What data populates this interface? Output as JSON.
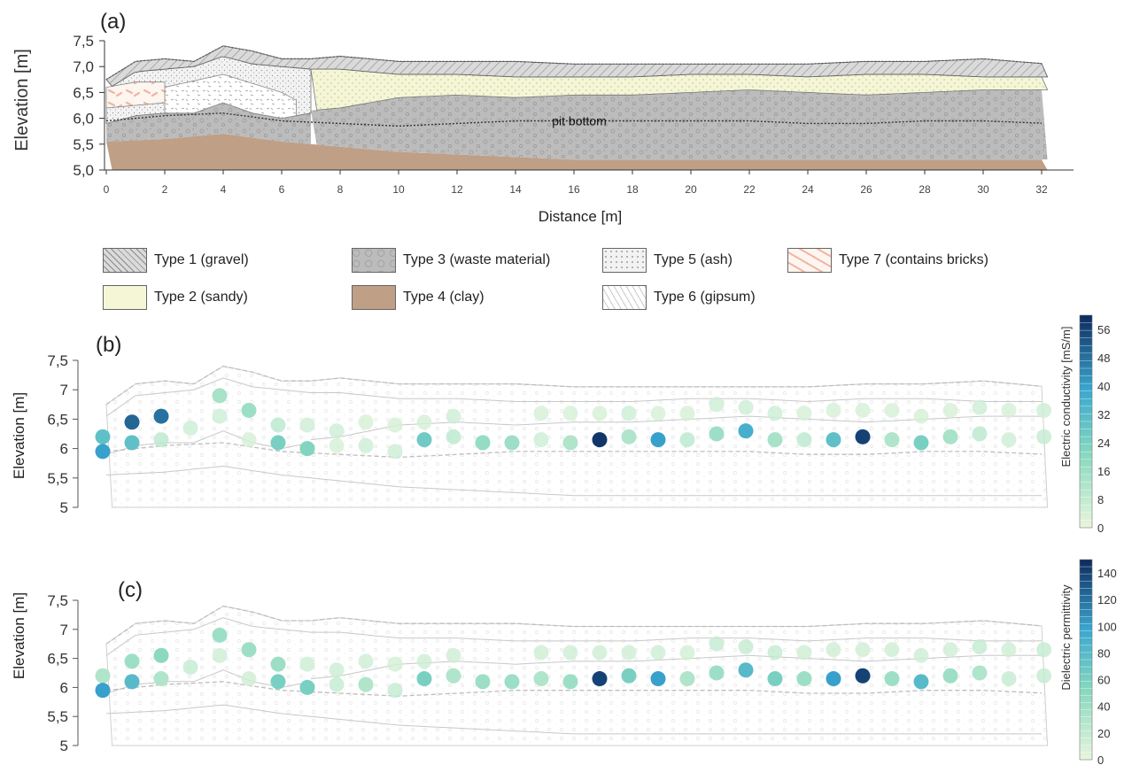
{
  "chart_data": [
    {
      "type": "area",
      "panel_label": "(a)",
      "xlabel": "Distance [m]",
      "ylabel": "Elevation [m]",
      "xlim": [
        0,
        32.5
      ],
      "ylim": [
        5.0,
        7.5
      ],
      "xticks": [
        "0",
        "2",
        "4",
        "6",
        "8",
        "10",
        "12",
        "14",
        "16",
        "18",
        "20",
        "22",
        "24",
        "26",
        "28",
        "30",
        "32"
      ],
      "yticks": [
        "5,0",
        "5,5",
        "6,0",
        "6,5",
        "7,0",
        "7,5"
      ],
      "annotation": "pit bottom",
      "annotation_x": 16,
      "annotation_y": 5.95,
      "top_surface": {
        "x": [
          0,
          1,
          2,
          3,
          4,
          5,
          6,
          7,
          8,
          9,
          10,
          12,
          14,
          16,
          18,
          20,
          22,
          24,
          26,
          28,
          30,
          32.2
        ],
        "y": [
          6.75,
          7.1,
          7.15,
          7.1,
          7.4,
          7.3,
          7.15,
          7.15,
          7.2,
          7.15,
          7.1,
          7.1,
          7.1,
          7.05,
          7.05,
          7.05,
          7.05,
          7.05,
          7.1,
          7.1,
          7.15,
          7.05
        ]
      },
      "gravel_base": {
        "x": [
          0,
          1,
          2,
          3,
          4,
          5,
          6,
          7,
          8,
          9,
          10,
          12,
          14,
          16,
          18,
          20,
          22,
          24,
          26,
          28,
          30,
          32.2
        ],
        "y": [
          6.55,
          6.9,
          6.95,
          7.0,
          7.2,
          7.05,
          7.0,
          6.95,
          6.95,
          6.9,
          6.85,
          6.85,
          6.8,
          6.8,
          6.8,
          6.85,
          6.85,
          6.8,
          6.85,
          6.85,
          6.8,
          6.8
        ]
      },
      "sandy_base": {
        "x": [
          7,
          8,
          9,
          10,
          12,
          14,
          16,
          18,
          20,
          22,
          24,
          26,
          28,
          30,
          32.2
        ],
        "y": [
          6.15,
          6.2,
          6.3,
          6.4,
          6.45,
          6.4,
          6.45,
          6.45,
          6.5,
          6.55,
          6.5,
          6.45,
          6.5,
          6.55,
          6.55
        ]
      },
      "waste_top_left": {
        "x": [
          0,
          1,
          2,
          3,
          4,
          5,
          6,
          7
        ],
        "y": [
          5.9,
          6.05,
          6.1,
          6.1,
          6.3,
          6.1,
          6.0,
          6.1
        ]
      },
      "pit_bottom_line": {
        "x": [
          0,
          2,
          4,
          6,
          8,
          10,
          12,
          14,
          16,
          18,
          20,
          22,
          24,
          26,
          28,
          30,
          32.2
        ],
        "y": [
          5.95,
          6.05,
          6.1,
          5.95,
          5.9,
          5.85,
          5.9,
          5.95,
          5.95,
          5.95,
          5.95,
          5.95,
          5.9,
          5.9,
          5.95,
          5.95,
          5.9
        ]
      },
      "clay_top": {
        "x": [
          0,
          2,
          4,
          6,
          8,
          10,
          12,
          14,
          16,
          18,
          20,
          22,
          24,
          26,
          28,
          30,
          32.2
        ],
        "y": [
          5.55,
          5.6,
          5.7,
          5.55,
          5.45,
          5.35,
          5.3,
          5.25,
          5.2,
          5.2,
          5.2,
          5.2,
          5.2,
          5.2,
          5.2,
          5.2,
          5.2
        ]
      },
      "legend": [
        {
          "label": "Type 1 (gravel)",
          "color": "#d4d4d4",
          "pattern": "hatch"
        },
        {
          "label": "Type 2 (sandy)",
          "color": "#f4f6d6",
          "pattern": "dots"
        },
        {
          "label": "Type 3 (waste material)",
          "color": "#bdbdbd",
          "pattern": "circles"
        },
        {
          "label": "Type 4 (clay)",
          "color": "#bf9f86",
          "pattern": "solid"
        },
        {
          "label": "Type 5 (ash)",
          "color": "#f2f2f2",
          "pattern": "stipple"
        },
        {
          "label": "Type 6 (gipsum)",
          "color": "#ffffff",
          "pattern": "dash"
        },
        {
          "label": "Type 7 (contains bricks)",
          "color": "#fdf3ec",
          "pattern": "bricks"
        }
      ]
    },
    {
      "type": "scatter",
      "panel_label": "(b)",
      "ylabel": "Elevation [m]",
      "ylim": [
        5.0,
        7.5
      ],
      "yticks": [
        "5",
        "5,5",
        "6",
        "6,5",
        "7",
        "7,5"
      ],
      "colorbar_label": "Electric conductivity [mS/m]",
      "colorbar_ticks": [
        "0",
        "8",
        "16",
        "24",
        "32",
        "40",
        "48",
        "56"
      ],
      "colorbar_range": [
        0,
        60
      ],
      "points": [
        {
          "x": 0,
          "y": 6.2,
          "v": 30
        },
        {
          "x": 0,
          "y": 5.95,
          "v": 40
        },
        {
          "x": 1,
          "y": 6.45,
          "v": 50
        },
        {
          "x": 1,
          "y": 6.1,
          "v": 30
        },
        {
          "x": 2,
          "y": 6.55,
          "v": 48
        },
        {
          "x": 2,
          "y": 6.15,
          "v": 10
        },
        {
          "x": 3,
          "y": 6.35,
          "v": 6
        },
        {
          "x": 4,
          "y": 6.9,
          "v": 14
        },
        {
          "x": 4,
          "y": 6.55,
          "v": 6
        },
        {
          "x": 5,
          "y": 6.65,
          "v": 16
        },
        {
          "x": 5,
          "y": 6.15,
          "v": 4
        },
        {
          "x": 6,
          "y": 6.4,
          "v": 10
        },
        {
          "x": 6,
          "y": 6.1,
          "v": 24
        },
        {
          "x": 7,
          "y": 6.4,
          "v": 6
        },
        {
          "x": 7,
          "y": 6.0,
          "v": 22
        },
        {
          "x": 8,
          "y": 6.3,
          "v": 6
        },
        {
          "x": 8,
          "y": 6.05,
          "v": 4
        },
        {
          "x": 9,
          "y": 6.45,
          "v": 4
        },
        {
          "x": 9,
          "y": 6.05,
          "v": 6
        },
        {
          "x": 10,
          "y": 6.4,
          "v": 4
        },
        {
          "x": 10,
          "y": 5.95,
          "v": 6
        },
        {
          "x": 11,
          "y": 6.45,
          "v": 4
        },
        {
          "x": 11,
          "y": 6.15,
          "v": 26
        },
        {
          "x": 12,
          "y": 6.55,
          "v": 6
        },
        {
          "x": 12,
          "y": 6.2,
          "v": 10
        },
        {
          "x": 13,
          "y": 6.1,
          "v": 18
        },
        {
          "x": 14,
          "y": 6.1,
          "v": 16
        },
        {
          "x": 15,
          "y": 6.6,
          "v": 4
        },
        {
          "x": 15,
          "y": 6.15,
          "v": 6
        },
        {
          "x": 16,
          "y": 6.6,
          "v": 4
        },
        {
          "x": 16,
          "y": 6.1,
          "v": 12
        },
        {
          "x": 17,
          "y": 6.6,
          "v": 4
        },
        {
          "x": 17,
          "y": 6.15,
          "v": 58
        },
        {
          "x": 18,
          "y": 6.6,
          "v": 6
        },
        {
          "x": 18,
          "y": 6.2,
          "v": 12
        },
        {
          "x": 19,
          "y": 6.6,
          "v": 4
        },
        {
          "x": 19,
          "y": 6.15,
          "v": 40
        },
        {
          "x": 20,
          "y": 6.6,
          "v": 4
        },
        {
          "x": 20,
          "y": 6.15,
          "v": 10
        },
        {
          "x": 21,
          "y": 6.75,
          "v": 6
        },
        {
          "x": 21,
          "y": 6.25,
          "v": 16
        },
        {
          "x": 22,
          "y": 6.7,
          "v": 6
        },
        {
          "x": 22,
          "y": 6.3,
          "v": 36
        },
        {
          "x": 23,
          "y": 6.6,
          "v": 6
        },
        {
          "x": 23,
          "y": 6.15,
          "v": 14
        },
        {
          "x": 24,
          "y": 6.6,
          "v": 4
        },
        {
          "x": 24,
          "y": 6.15,
          "v": 10
        },
        {
          "x": 25,
          "y": 6.65,
          "v": 4
        },
        {
          "x": 25,
          "y": 6.15,
          "v": 30
        },
        {
          "x": 26,
          "y": 6.65,
          "v": 4
        },
        {
          "x": 26,
          "y": 6.2,
          "v": 56
        },
        {
          "x": 27,
          "y": 6.65,
          "v": 4
        },
        {
          "x": 27,
          "y": 6.15,
          "v": 12
        },
        {
          "x": 28,
          "y": 6.55,
          "v": 4
        },
        {
          "x": 28,
          "y": 6.1,
          "v": 24
        },
        {
          "x": 29,
          "y": 6.65,
          "v": 4
        },
        {
          "x": 29,
          "y": 6.2,
          "v": 14
        },
        {
          "x": 30,
          "y": 6.7,
          "v": 6
        },
        {
          "x": 30,
          "y": 6.25,
          "v": 10
        },
        {
          "x": 31,
          "y": 6.65,
          "v": 4
        },
        {
          "x": 31,
          "y": 6.15,
          "v": 6
        },
        {
          "x": 32.2,
          "y": 6.65,
          "v": 6
        },
        {
          "x": 32.2,
          "y": 6.2,
          "v": 8
        }
      ]
    },
    {
      "type": "scatter",
      "panel_label": "(c)",
      "ylabel": "Elevation [m]",
      "ylim": [
        5.0,
        7.5
      ],
      "yticks": [
        "5",
        "5,5",
        "6",
        "6,5",
        "7",
        "7,5"
      ],
      "colorbar_label": "Dielectric permittivity",
      "colorbar_ticks": [
        "0",
        "20",
        "40",
        "60",
        "80",
        "100",
        "120",
        "140"
      ],
      "colorbar_range": [
        0,
        150
      ],
      "points": [
        {
          "x": 0,
          "y": 6.2,
          "v": 30
        },
        {
          "x": 0,
          "y": 5.95,
          "v": 100
        },
        {
          "x": 1,
          "y": 6.45,
          "v": 40
        },
        {
          "x": 1,
          "y": 6.1,
          "v": 80
        },
        {
          "x": 2,
          "y": 6.55,
          "v": 50
        },
        {
          "x": 2,
          "y": 6.15,
          "v": 30
        },
        {
          "x": 3,
          "y": 6.35,
          "v": 20
        },
        {
          "x": 4,
          "y": 6.9,
          "v": 40
        },
        {
          "x": 4,
          "y": 6.55,
          "v": 14
        },
        {
          "x": 5,
          "y": 6.65,
          "v": 40
        },
        {
          "x": 5,
          "y": 6.15,
          "v": 14
        },
        {
          "x": 6,
          "y": 6.4,
          "v": 40
        },
        {
          "x": 6,
          "y": 6.1,
          "v": 60
        },
        {
          "x": 7,
          "y": 6.4,
          "v": 16
        },
        {
          "x": 7,
          "y": 6.0,
          "v": 60
        },
        {
          "x": 8,
          "y": 6.3,
          "v": 16
        },
        {
          "x": 8,
          "y": 6.05,
          "v": 20
        },
        {
          "x": 9,
          "y": 6.45,
          "v": 14
        },
        {
          "x": 9,
          "y": 6.05,
          "v": 30
        },
        {
          "x": 10,
          "y": 6.4,
          "v": 12
        },
        {
          "x": 10,
          "y": 5.95,
          "v": 20
        },
        {
          "x": 11,
          "y": 6.45,
          "v": 14
        },
        {
          "x": 11,
          "y": 6.15,
          "v": 60
        },
        {
          "x": 12,
          "y": 6.55,
          "v": 14
        },
        {
          "x": 12,
          "y": 6.2,
          "v": 30
        },
        {
          "x": 13,
          "y": 6.1,
          "v": 40
        },
        {
          "x": 14,
          "y": 6.1,
          "v": 40
        },
        {
          "x": 15,
          "y": 6.6,
          "v": 14
        },
        {
          "x": 15,
          "y": 6.15,
          "v": 30
        },
        {
          "x": 16,
          "y": 6.6,
          "v": 14
        },
        {
          "x": 16,
          "y": 6.1,
          "v": 40
        },
        {
          "x": 17,
          "y": 6.6,
          "v": 14
        },
        {
          "x": 17,
          "y": 6.15,
          "v": 140
        },
        {
          "x": 18,
          "y": 6.6,
          "v": 14
        },
        {
          "x": 18,
          "y": 6.2,
          "v": 60
        },
        {
          "x": 19,
          "y": 6.6,
          "v": 14
        },
        {
          "x": 19,
          "y": 6.15,
          "v": 100
        },
        {
          "x": 20,
          "y": 6.6,
          "v": 12
        },
        {
          "x": 20,
          "y": 6.15,
          "v": 30
        },
        {
          "x": 21,
          "y": 6.75,
          "v": 20
        },
        {
          "x": 21,
          "y": 6.25,
          "v": 40
        },
        {
          "x": 22,
          "y": 6.7,
          "v": 20
        },
        {
          "x": 22,
          "y": 6.3,
          "v": 80
        },
        {
          "x": 23,
          "y": 6.6,
          "v": 20
        },
        {
          "x": 23,
          "y": 6.15,
          "v": 60
        },
        {
          "x": 24,
          "y": 6.6,
          "v": 14
        },
        {
          "x": 24,
          "y": 6.15,
          "v": 40
        },
        {
          "x": 25,
          "y": 6.65,
          "v": 14
        },
        {
          "x": 25,
          "y": 6.15,
          "v": 100
        },
        {
          "x": 26,
          "y": 6.65,
          "v": 14
        },
        {
          "x": 26,
          "y": 6.2,
          "v": 140
        },
        {
          "x": 27,
          "y": 6.65,
          "v": 14
        },
        {
          "x": 27,
          "y": 6.15,
          "v": 40
        },
        {
          "x": 28,
          "y": 6.55,
          "v": 14
        },
        {
          "x": 28,
          "y": 6.1,
          "v": 80
        },
        {
          "x": 29,
          "y": 6.65,
          "v": 14
        },
        {
          "x": 29,
          "y": 6.2,
          "v": 40
        },
        {
          "x": 30,
          "y": 6.7,
          "v": 20
        },
        {
          "x": 30,
          "y": 6.25,
          "v": 30
        },
        {
          "x": 31,
          "y": 6.65,
          "v": 14
        },
        {
          "x": 31,
          "y": 6.15,
          "v": 20
        },
        {
          "x": 32.2,
          "y": 6.65,
          "v": 20
        },
        {
          "x": 32.2,
          "y": 6.2,
          "v": 20
        }
      ]
    }
  ]
}
